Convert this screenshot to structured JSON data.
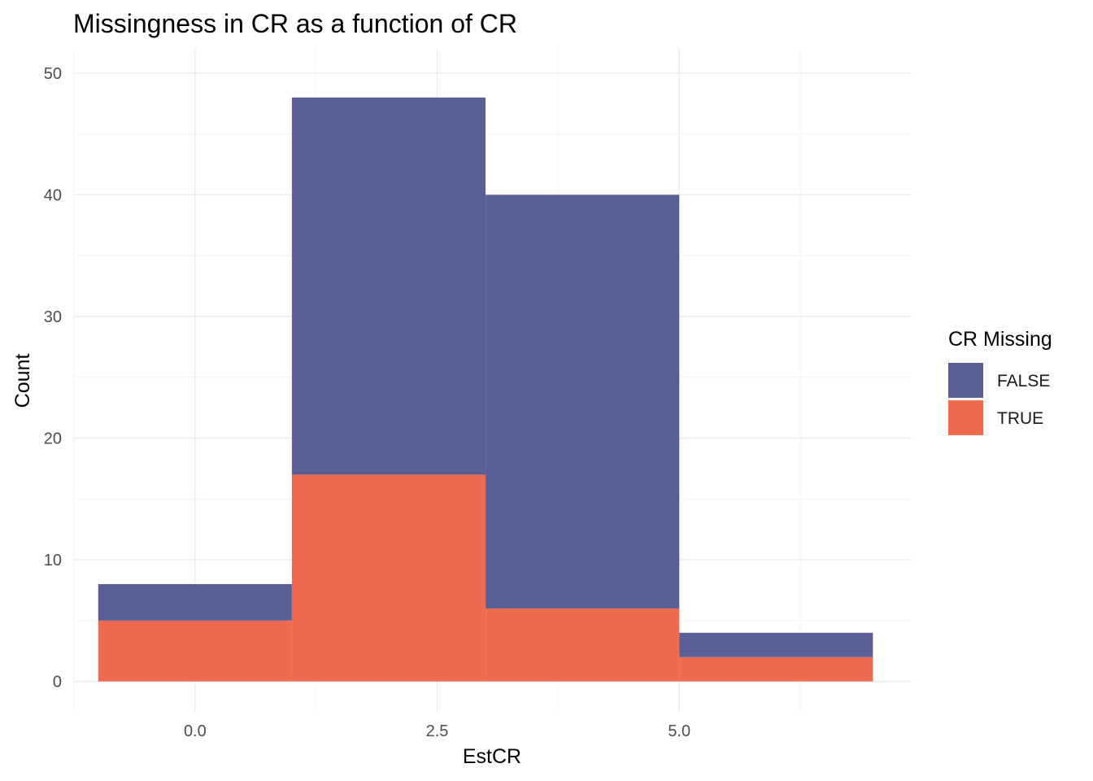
{
  "chart_data": {
    "type": "bar",
    "title": "Missingness in CR as a function of CR",
    "xlabel": "EstCR",
    "ylabel": "Count",
    "xlim": [
      -1.25,
      7.4
    ],
    "ylim": [
      -2.5,
      52
    ],
    "x_ticks": [
      0.0,
      2.5,
      5.0
    ],
    "x_tick_labels": [
      "0.0",
      "2.5",
      "5.0"
    ],
    "y_ticks": [
      0,
      10,
      20,
      30,
      40,
      50
    ],
    "y_tick_labels": [
      "0",
      "10",
      "20",
      "30",
      "40",
      "50"
    ],
    "bins": [
      {
        "start": -1,
        "end": 1
      },
      {
        "start": 1,
        "end": 3
      },
      {
        "start": 3,
        "end": 5
      },
      {
        "start": 5,
        "end": 7
      }
    ],
    "stacked": true,
    "series": [
      {
        "name": "TRUE",
        "color": "#EE6B4F",
        "values": [
          5,
          17,
          6,
          2
        ]
      },
      {
        "name": "FALSE",
        "color": "#5A5F96",
        "values": [
          3,
          31,
          34,
          2
        ]
      }
    ],
    "grid": true,
    "legend": {
      "title": "CR Missing",
      "position": "right",
      "entries": [
        {
          "label": "FALSE",
          "color": "#5A5F96"
        },
        {
          "label": "TRUE",
          "color": "#EE6B4F"
        }
      ]
    }
  }
}
